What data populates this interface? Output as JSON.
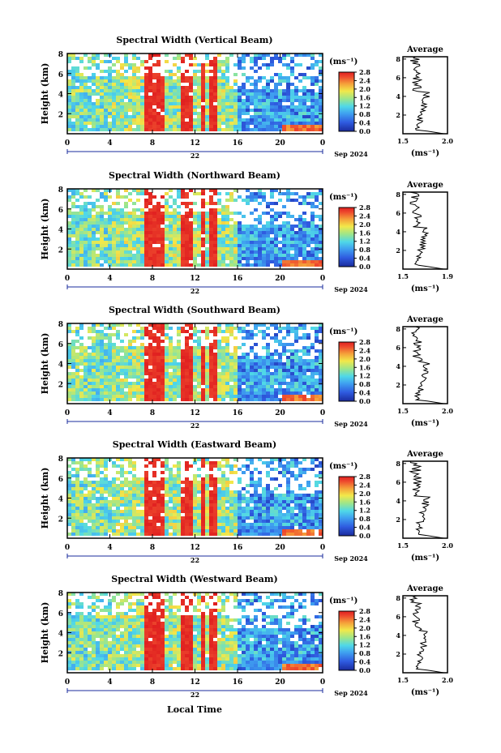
{
  "chart_data": [
    {
      "type": "heatmap",
      "title": "Spectral Width (Vertical Beam)",
      "profile_title": "Average",
      "profile_xticks": [
        "1.5",
        "2.0"
      ]
    },
    {
      "type": "heatmap",
      "title": "Spectral Width (Northward Beam)",
      "profile_title": "Average",
      "profile_xticks": [
        "1.5",
        "1.9"
      ]
    },
    {
      "type": "heatmap",
      "title": "Spectral Width (Southward Beam)",
      "profile_title": "Average",
      "profile_xticks": [
        "1.5",
        "2.0"
      ]
    },
    {
      "type": "heatmap",
      "title": "Spectral Width (Eastward Beam)",
      "profile_title": "Average",
      "profile_xticks": [
        "1.5",
        "2.0"
      ]
    },
    {
      "type": "heatmap",
      "title": "Spectral Width (Westward Beam)",
      "profile_title": "Average",
      "profile_xticks": [
        "1.5",
        "2.0"
      ]
    }
  ],
  "shared": {
    "ylabel": "Height (km)",
    "yticks": [
      "2",
      "4",
      "6",
      "8"
    ],
    "xticks": [
      "0",
      "4",
      "8",
      "12",
      "16",
      "20",
      "0"
    ],
    "day_label": "22",
    "date_label": "Sep 2024",
    "cbar_unit": "(ms⁻¹)",
    "cbar_ticks": [
      "0.0",
      "0.4",
      "0.8",
      "1.2",
      "1.6",
      "2.0",
      "2.4",
      "2.8"
    ],
    "profile_yticks": [
      "2",
      "4",
      "6",
      "8"
    ],
    "profile_xlabel": "(ms⁻¹)",
    "xlabel": "Local Time"
  }
}
